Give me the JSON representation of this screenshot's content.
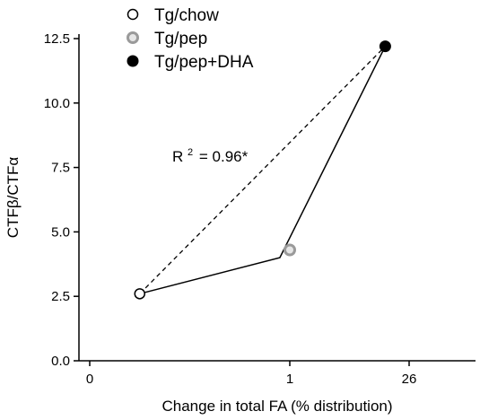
{
  "chart_data": {
    "type": "scatter",
    "xlabel": "Change in total FA (% distribution)",
    "ylabel": "CTFβ/CTFα",
    "x_tick_labels": [
      "0",
      "1",
      "26"
    ],
    "ylim": [
      0,
      12.5
    ],
    "y_ticks": [
      0.0,
      2.5,
      5.0,
      7.5,
      10.0,
      12.5
    ],
    "y_tick_labels": [
      "0.0",
      "2.5",
      "5.0",
      "7.5",
      "10.0",
      "12.5"
    ],
    "grid": false,
    "legend_position": "top",
    "annotation": {
      "prefix": "R",
      "sup": "2",
      "suffix": "= 0.96*"
    },
    "series": [
      {
        "name": "Tg/chow",
        "x_pos": 0.25,
        "y": 2.6,
        "marker": "open-circle",
        "color": "#000000"
      },
      {
        "name": "Tg/pep",
        "x_pos": 1.0,
        "y": 4.3,
        "marker": "gray-ring",
        "color": "#9a9a9a"
      },
      {
        "name": "Tg/pep+DHA",
        "x_pos": 1.8,
        "y": 12.2,
        "marker": "filled-circle",
        "color": "#000000"
      }
    ],
    "solid_line": [
      {
        "x_pos": 0.25,
        "y": 2.6
      },
      {
        "x_pos": 0.95,
        "y": 4.0
      },
      {
        "x_pos": 1.8,
        "y": 12.2
      }
    ],
    "dashed_line": [
      {
        "x_pos": 0.25,
        "y": 2.6
      },
      {
        "x_pos": 1.8,
        "y": 12.2
      }
    ]
  }
}
